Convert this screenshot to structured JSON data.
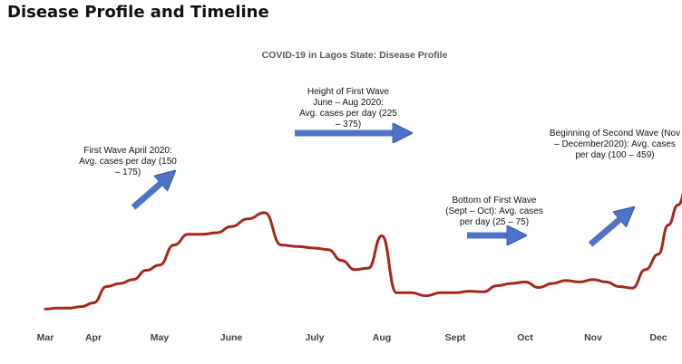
{
  "header": {
    "title": "Disease Profile and Timeline"
  },
  "colors": {
    "line": "#a5271d",
    "arrow_fill": "#4f74c7",
    "arrow_stroke": "#3a5ea8"
  },
  "chart_data": {
    "type": "line",
    "title": "COVID-19 in Lagos State: Disease Profile",
    "xlabel": "",
    "ylabel": "",
    "grid": false,
    "legend": "none",
    "categories": [
      "Mar",
      "Apr",
      "May",
      "June",
      "July",
      "Aug",
      "Sept",
      "Oct",
      "Nov",
      "Dec"
    ],
    "ylim": [
      0,
      500
    ],
    "series": [
      {
        "name": "Avg. cases per day",
        "x": [
          0.0,
          0.25,
          0.5,
          0.75,
          1.0,
          1.2,
          1.4,
          1.6,
          1.8,
          2.0,
          2.2,
          2.4,
          2.6,
          2.8,
          3.0,
          3.2,
          3.4,
          3.6,
          3.8,
          4.0,
          4.2,
          4.4,
          4.6,
          4.8,
          5.0,
          5.2,
          5.4,
          5.6,
          5.8,
          6.0,
          6.2,
          6.4,
          6.6,
          6.8,
          7.0,
          7.2,
          7.4,
          7.6,
          7.8,
          8.0,
          8.2,
          8.4,
          8.6,
          8.8,
          9.0,
          9.15,
          9.3,
          9.5,
          9.6
        ],
        "values": [
          2,
          5,
          5,
          10,
          22,
          75,
          85,
          98,
          128,
          145,
          210,
          245,
          245,
          250,
          270,
          295,
          315,
          210,
          205,
          200,
          195,
          160,
          130,
          135,
          240,
          55,
          55,
          45,
          55,
          55,
          60,
          58,
          78,
          85,
          90,
          72,
          85,
          95,
          90,
          98,
          90,
          75,
          70,
          130,
          180,
          275,
          340,
          465,
          440
        ]
      }
    ],
    "annotations": [
      {
        "lines": [
          "First Wave April 2020:",
          "Avg. cases per day (150",
          "– 175)"
        ]
      },
      {
        "lines": [
          "Height of First Wave",
          "June – Aug 2020:",
          "Avg. cases per day (225",
          "– 375)"
        ]
      },
      {
        "lines": [
          "Bottom of First Wave",
          "(Sept – Oct): Avg. cases",
          "per day (25 – 75)"
        ]
      },
      {
        "lines": [
          "Beginning of Second Wave (Nov",
          "– December2020): Avg. cases",
          "per day (100 – 459)"
        ]
      }
    ]
  }
}
